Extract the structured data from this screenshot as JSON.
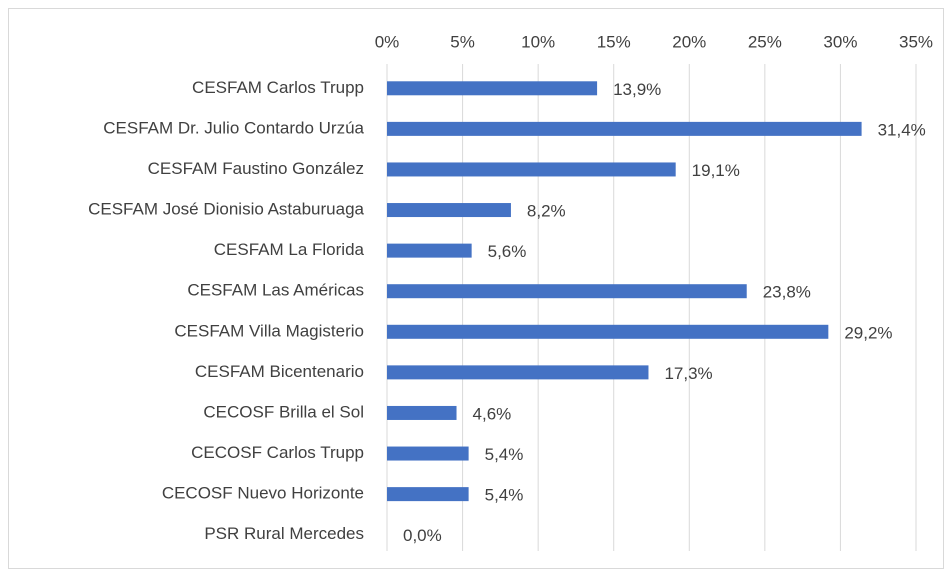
{
  "chart_data": {
    "type": "barh",
    "categories": [
      "CESFAM Carlos Trupp",
      "CESFAM Dr. Julio Contardo Urzúa",
      "CESFAM Faustino González",
      "CESFAM José Dionisio Astaburuaga",
      "CESFAM La Florida",
      "CESFAM Las Américas",
      "CESFAM Villa Magisterio",
      "CESFAM Bicentenario",
      "CECOSF Brilla el Sol",
      "CECOSF Carlos Trupp",
      "CECOSF Nuevo Horizonte",
      "PSR Rural Mercedes"
    ],
    "values": [
      13.9,
      31.4,
      19.1,
      8.2,
      5.6,
      23.8,
      29.2,
      17.3,
      4.6,
      5.4,
      5.4,
      0.0
    ],
    "value_labels": [
      "13,9%",
      "31,4%",
      "19,1%",
      "8,2%",
      "5,6%",
      "23,8%",
      "29,2%",
      "17,3%",
      "4,6%",
      "5,4%",
      "5,4%",
      "0,0%"
    ],
    "color": "#4472c4",
    "xlim": [
      0,
      35
    ],
    "xticks": [
      {
        "value": 0,
        "label": "0%"
      },
      {
        "value": 5,
        "label": "5%"
      },
      {
        "value": 10,
        "label": "10%"
      },
      {
        "value": 15,
        "label": "15%"
      },
      {
        "value": 20,
        "label": "20%"
      },
      {
        "value": 25,
        "label": "25%"
      },
      {
        "value": 30,
        "label": "30%"
      },
      {
        "value": 35,
        "label": "35%"
      }
    ],
    "grid": true
  }
}
